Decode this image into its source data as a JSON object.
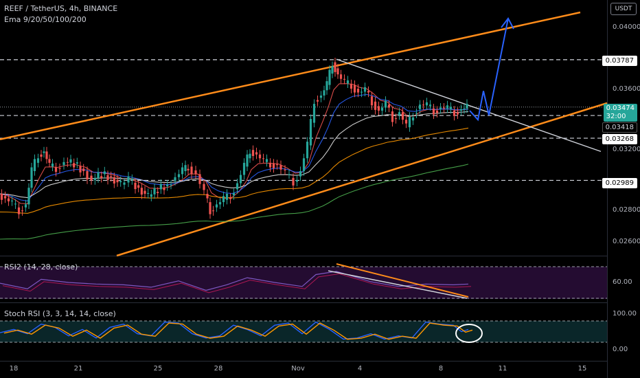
{
  "header": {
    "title": "REEF / TetherUS, 4h, BINANCE",
    "indicator": "Ema 9/20/50/100/200"
  },
  "currency_button": "USDT",
  "price_axis": {
    "ticks": [
      "0.04000",
      "0.03600",
      "0.03200",
      "0.02800",
      "0.02600"
    ],
    "tags": {
      "level_high": "0.03787",
      "last_price": "0.03474",
      "countdown": "32:00",
      "level_mid": "0.03418",
      "level_low": "0.03268",
      "level_support": "0.02989"
    }
  },
  "rsi_panel": {
    "label": "RSI2 (14, 28, close)",
    "tick": "60.00"
  },
  "stoch_panel": {
    "label": "Stoch RSI (3, 3, 14, 14, close)",
    "ticks": [
      "100.00",
      "0.00"
    ]
  },
  "time_axis": [
    "18",
    "21",
    "25",
    "28",
    "Nov",
    "4",
    "8",
    "11",
    "15"
  ],
  "colors": {
    "up": "#26a69a",
    "down": "#ef5350",
    "channel": "#ff8c1a",
    "projection": "#2962ff",
    "rsi_bg": "#2a0e3a",
    "stoch_bg": "#0b2a2e"
  },
  "chart_data": {
    "type": "candlestick",
    "symbol": "REEF / TetherUS",
    "interval": "4h",
    "exchange": "BINANCE",
    "x_labels": [
      "18",
      "21",
      "25",
      "28",
      "Nov",
      "4",
      "8",
      "11",
      "15"
    ],
    "horizontal_levels": [
      0.03787,
      0.03418,
      0.03268,
      0.02989
    ],
    "last_price": 0.03474,
    "ema_periods": [
      9,
      20,
      50,
      100,
      200
    ],
    "close_path": [
      [
        0,
        0.029
      ],
      [
        10,
        0.0287
      ],
      [
        20,
        0.0283
      ],
      [
        30,
        0.0279
      ],
      [
        40,
        0.0283
      ],
      [
        48,
        0.0305
      ],
      [
        58,
        0.0316
      ],
      [
        66,
        0.0318
      ],
      [
        74,
        0.0308
      ],
      [
        84,
        0.0307
      ],
      [
        96,
        0.0311
      ],
      [
        110,
        0.031
      ],
      [
        124,
        0.0305
      ],
      [
        136,
        0.0299
      ],
      [
        150,
        0.0303
      ],
      [
        164,
        0.0301
      ],
      [
        178,
        0.0296
      ],
      [
        190,
        0.0299
      ],
      [
        204,
        0.0294
      ],
      [
        218,
        0.0288
      ],
      [
        232,
        0.0293
      ],
      [
        246,
        0.0296
      ],
      [
        258,
        0.0301
      ],
      [
        268,
        0.0305
      ],
      [
        276,
        0.0308
      ],
      [
        288,
        0.0303
      ],
      [
        300,
        0.029
      ],
      [
        308,
        0.0279
      ],
      [
        318,
        0.0283
      ],
      [
        328,
        0.0286
      ],
      [
        338,
        0.0289
      ],
      [
        348,
        0.0297
      ],
      [
        358,
        0.0308
      ],
      [
        366,
        0.0319
      ],
      [
        376,
        0.0316
      ],
      [
        386,
        0.0311
      ],
      [
        396,
        0.031
      ],
      [
        406,
        0.0309
      ],
      [
        418,
        0.0303
      ],
      [
        430,
        0.0298
      ],
      [
        440,
        0.0305
      ],
      [
        450,
        0.0322
      ],
      [
        460,
        0.0352
      ],
      [
        470,
        0.0355
      ],
      [
        478,
        0.0362
      ],
      [
        486,
        0.0377
      ],
      [
        494,
        0.0369
      ],
      [
        504,
        0.0363
      ],
      [
        514,
        0.0362
      ],
      [
        524,
        0.0357
      ],
      [
        534,
        0.0358
      ],
      [
        544,
        0.0351
      ],
      [
        554,
        0.0345
      ],
      [
        564,
        0.0349
      ],
      [
        574,
        0.034
      ],
      [
        584,
        0.0344
      ],
      [
        594,
        0.0334
      ],
      [
        604,
        0.0343
      ],
      [
        614,
        0.0349
      ],
      [
        624,
        0.0348
      ],
      [
        634,
        0.0345
      ],
      [
        644,
        0.0347
      ],
      [
        654,
        0.0346
      ],
      [
        664,
        0.0344
      ],
      [
        674,
        0.0346
      ],
      [
        682,
        0.0347
      ]
    ],
    "rsi_path": [
      [
        0,
        59
      ],
      [
        40,
        52
      ],
      [
        60,
        64
      ],
      [
        100,
        60
      ],
      [
        140,
        58
      ],
      [
        180,
        57
      ],
      [
        220,
        54
      ],
      [
        260,
        62
      ],
      [
        300,
        50
      ],
      [
        330,
        57
      ],
      [
        360,
        66
      ],
      [
        400,
        60
      ],
      [
        440,
        55
      ],
      [
        460,
        70
      ],
      [
        490,
        74
      ],
      [
        540,
        61
      ],
      [
        580,
        55
      ],
      [
        620,
        58
      ],
      [
        660,
        57
      ],
      [
        682,
        58
      ]
    ],
    "stoch_k": [
      [
        0,
        45
      ],
      [
        20,
        60
      ],
      [
        40,
        40
      ],
      [
        60,
        85
      ],
      [
        80,
        70
      ],
      [
        100,
        30
      ],
      [
        120,
        60
      ],
      [
        140,
        20
      ],
      [
        160,
        70
      ],
      [
        180,
        85
      ],
      [
        200,
        40
      ],
      [
        220,
        30
      ],
      [
        240,
        95
      ],
      [
        260,
        90
      ],
      [
        280,
        40
      ],
      [
        300,
        20
      ],
      [
        320,
        30
      ],
      [
        340,
        80
      ],
      [
        360,
        60
      ],
      [
        380,
        30
      ],
      [
        400,
        80
      ],
      [
        420,
        90
      ],
      [
        440,
        40
      ],
      [
        460,
        95
      ],
      [
        480,
        60
      ],
      [
        500,
        15
      ],
      [
        520,
        20
      ],
      [
        540,
        40
      ],
      [
        560,
        15
      ],
      [
        580,
        30
      ],
      [
        600,
        20
      ],
      [
        620,
        95
      ],
      [
        640,
        85
      ],
      [
        660,
        80
      ],
      [
        672,
        50
      ],
      [
        682,
        60
      ]
    ]
  }
}
